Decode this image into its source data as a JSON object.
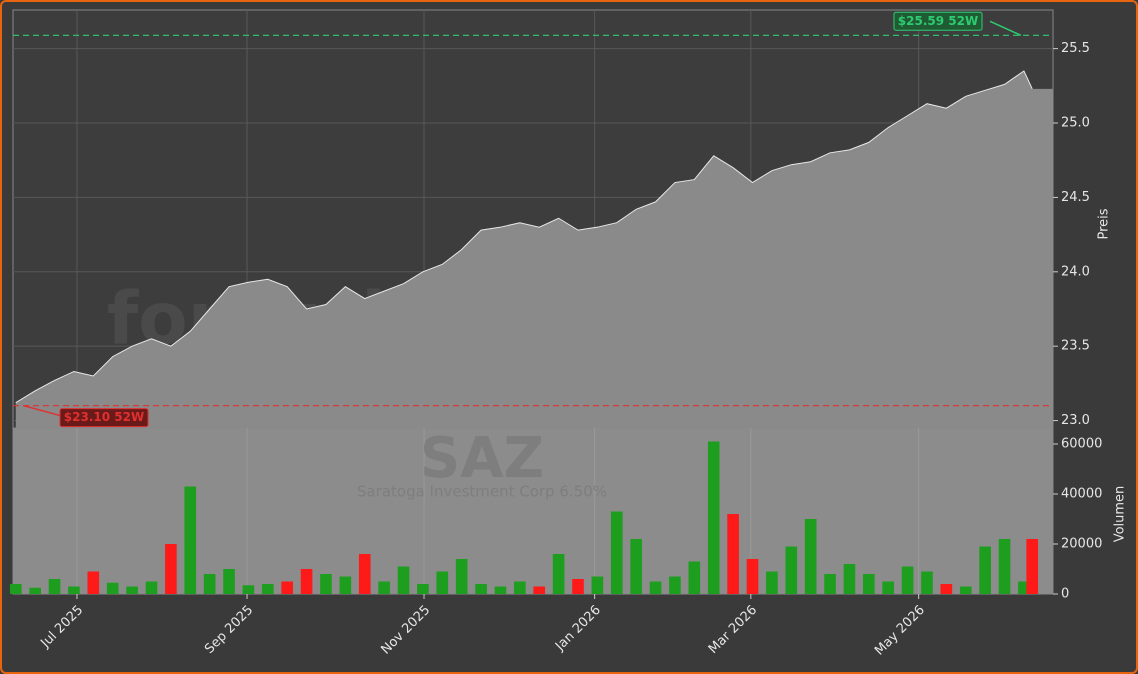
{
  "chart_data": {
    "type": "price-volume",
    "watermark": "forexsignale.trade",
    "symbol": "SAZ",
    "name": "Saratoga Investment Corp 6.50%",
    "y_label": "Preis",
    "y2_label": "Volumen",
    "x": [
      1,
      8,
      15,
      22,
      29,
      36,
      43,
      50,
      57,
      64,
      71,
      78,
      85,
      92,
      99,
      106,
      113,
      120,
      127,
      134,
      141,
      148,
      155,
      162,
      169,
      176,
      183,
      190,
      197,
      204,
      211,
      218,
      225,
      232,
      239,
      246,
      253,
      260,
      267,
      274,
      281,
      288,
      295,
      302,
      309,
      316,
      323,
      330,
      337,
      344,
      351,
      358,
      365,
      368
    ],
    "series": [
      {
        "name": "Preis",
        "color": "#8a8a8a",
        "values": [
          23.12,
          23.2,
          23.27,
          23.33,
          23.3,
          23.43,
          23.5,
          23.55,
          23.5,
          23.6,
          23.75,
          23.9,
          23.93,
          23.95,
          23.9,
          23.75,
          23.78,
          23.9,
          23.82,
          23.87,
          23.92,
          24.0,
          24.05,
          24.15,
          24.28,
          24.3,
          24.33,
          24.3,
          24.36,
          24.28,
          24.3,
          24.33,
          24.42,
          24.47,
          24.6,
          24.62,
          24.78,
          24.7,
          24.6,
          24.68,
          24.72,
          24.74,
          24.8,
          24.82,
          24.87,
          24.97,
          25.05,
          25.13,
          25.1,
          25.18,
          25.22,
          25.26,
          25.35,
          25.23
        ]
      },
      {
        "name": "Volumen",
        "axis": "y2",
        "up_color": "#1e9e1e",
        "down_color": "#ff1a1a",
        "values": [
          4000,
          2500,
          6000,
          3000,
          9000,
          4500,
          3000,
          5000,
          20000,
          43000,
          8000,
          10000,
          3500,
          4000,
          5000,
          10000,
          8000,
          7000,
          16000,
          5000,
          11000,
          4000,
          9000,
          14000,
          4000,
          3000,
          5000,
          3000,
          16000,
          6000,
          7000,
          33000,
          22000,
          5000,
          7000,
          13000,
          61000,
          32000,
          14000,
          9000,
          19000,
          30000,
          8000,
          12000,
          8000,
          5000,
          11000,
          9000,
          4000,
          3000,
          19000,
          22000,
          5000,
          22000
        ]
      }
    ],
    "xlim": [
      0,
      375.5
    ],
    "xticks": [
      {
        "value": 23.1,
        "label": "Jul 2025"
      },
      {
        "value": 84.5,
        "label": "Sep 2025"
      },
      {
        "value": 148.4,
        "label": "Nov 2025"
      },
      {
        "value": 210,
        "label": "Jan 2026"
      },
      {
        "value": 266.4,
        "label": "Mar 2026"
      },
      {
        "value": 327,
        "label": "May 2026"
      }
    ],
    "ylim": [
      22.95,
      25.76
    ],
    "yticks": [
      {
        "value": 23,
        "label": "23.0"
      },
      23.5,
      {
        "value": 24,
        "label": "24.0"
      },
      24.5,
      {
        "value": 25,
        "label": "25.0"
      },
      25.5
    ],
    "y2lim": [
      0,
      66400
    ],
    "y2ticks": [
      0,
      20000,
      40000,
      60000
    ],
    "high_52w": {
      "value": 25.59,
      "label": "$25.59 52W",
      "color": "#2ecc71"
    },
    "low_52w": {
      "value": 23.1,
      "label": "$23.10 52W",
      "color": "#e03030"
    },
    "grid": true
  }
}
